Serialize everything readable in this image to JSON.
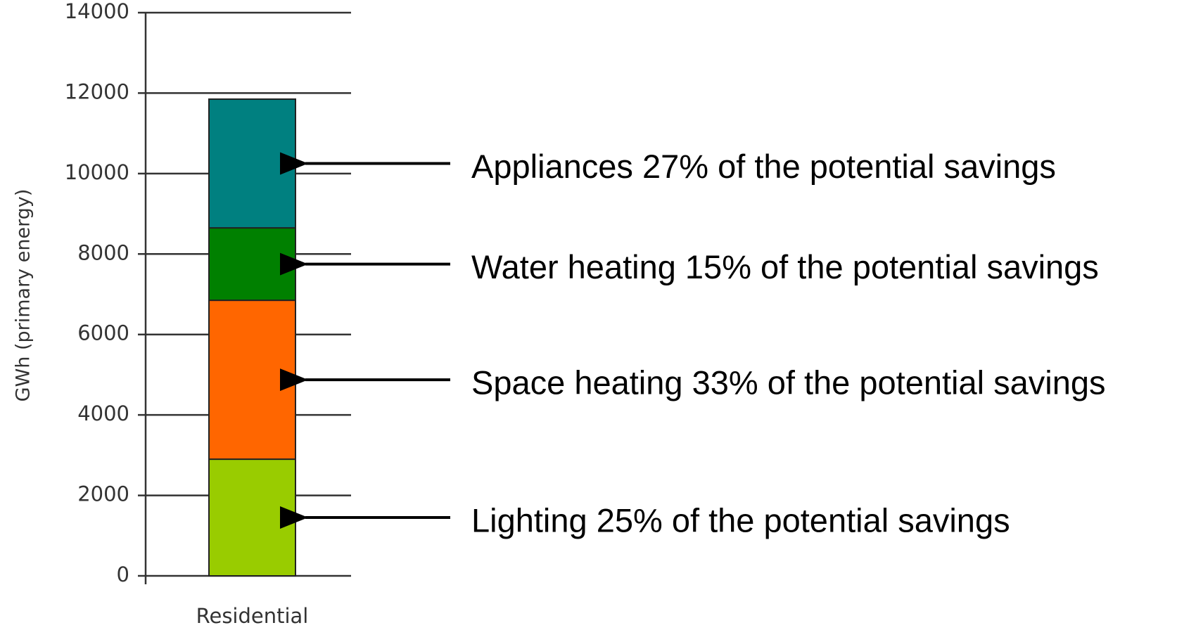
{
  "chart_data": {
    "type": "stacked_bar",
    "ylabel": "GWh (primary energy)",
    "categories": [
      "Residential"
    ],
    "series": [
      {
        "name": "Lighting 25% of the potential savings",
        "color": "#99cc00",
        "values": [
          2900
        ]
      },
      {
        "name": "Space heating 33% of the potential savings",
        "color": "#ff6600",
        "values": [
          3950
        ]
      },
      {
        "name": "Water heating 15% of the potential savings",
        "color": "#008000",
        "values": [
          1800
        ]
      },
      {
        "name": "Appliances 27% of the potential savings",
        "color": "#008080",
        "values": [
          3200
        ]
      }
    ],
    "ylim": [
      0,
      14000
    ],
    "yticks": [
      0,
      2000,
      4000,
      6000,
      8000,
      10000,
      12000,
      14000
    ],
    "grid": true
  }
}
